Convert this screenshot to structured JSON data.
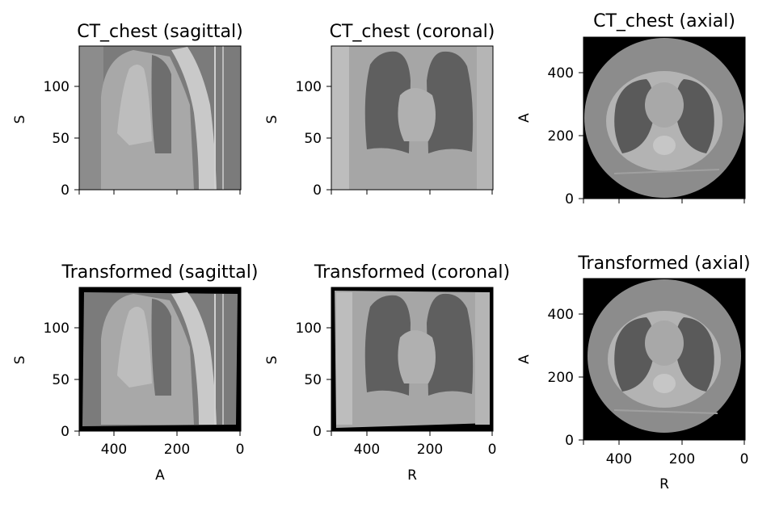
{
  "panels": [
    {
      "title": "CT_chest (sagittal)",
      "ylabel": "S",
      "xlabel": "",
      "yticks": [
        "0",
        "50",
        "100"
      ],
      "xticks": [
        "",
        "",
        ""
      ],
      "view": "sagittal"
    },
    {
      "title": "CT_chest (coronal)",
      "ylabel": "S",
      "xlabel": "",
      "yticks": [
        "0",
        "50",
        "100"
      ],
      "xticks": [
        "",
        "",
        ""
      ],
      "view": "coronal"
    },
    {
      "title": "CT_chest (axial)",
      "ylabel": "A",
      "xlabel": "",
      "yticks": [
        "0",
        "200",
        "400"
      ],
      "xticks": [
        "",
        "",
        ""
      ],
      "view": "axial"
    },
    {
      "title": "Transformed (sagittal)",
      "ylabel": "S",
      "xlabel": "A",
      "yticks": [
        "0",
        "50",
        "100"
      ],
      "xticks": [
        "400",
        "200",
        "0"
      ],
      "view": "sagittal"
    },
    {
      "title": "Transformed (coronal)",
      "ylabel": "S",
      "xlabel": "R",
      "yticks": [
        "0",
        "50",
        "100"
      ],
      "xticks": [
        "400",
        "200",
        "0"
      ],
      "view": "coronal"
    },
    {
      "title": "Transformed (axial)",
      "ylabel": "A",
      "xlabel": "R",
      "yticks": [
        "0",
        "200",
        "400"
      ],
      "xticks": [
        "400",
        "200",
        "0"
      ],
      "view": "axial"
    }
  ]
}
